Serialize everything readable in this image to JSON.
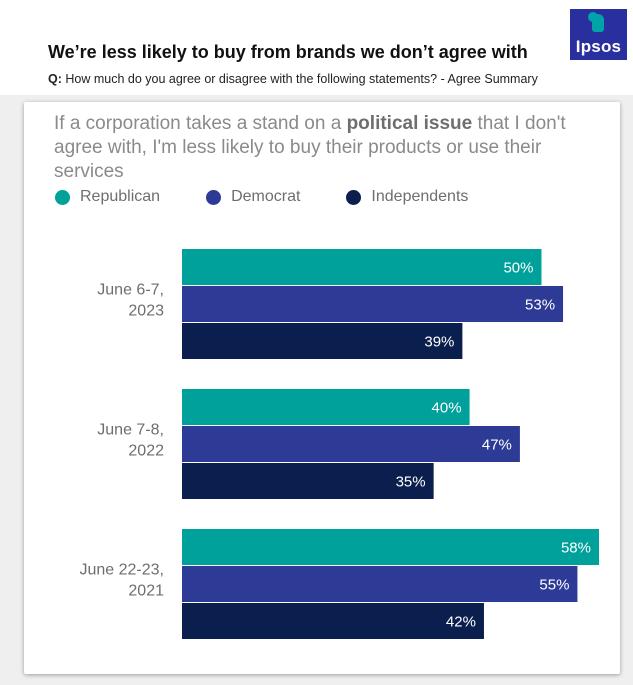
{
  "header": {
    "title": "We’re less likely to buy from brands we don’t agree with",
    "question_label": "Q:",
    "question_text": "How much do you agree or disagree with the following statements? - Agree Summary",
    "logo_text": "Ipsos"
  },
  "card": {
    "statement_before": "If a corporation takes a stand on a ",
    "statement_bold": "political issue",
    "statement_after": " that I don't agree with, I'm less likely to buy their products or use their services"
  },
  "colors": {
    "republican": "#00a09b",
    "democrat": "#2e3b96",
    "independents": "#0b1f4f"
  },
  "chart_data": {
    "type": "bar",
    "orientation": "horizontal",
    "categories": [
      "June 6-7,\n2023",
      "June 7-8,\n2022",
      "June 22-23,\n2021"
    ],
    "series": [
      {
        "name": "Republican",
        "values": [
          50,
          40,
          58
        ],
        "labels": [
          "50%",
          "40%",
          "58%"
        ]
      },
      {
        "name": "Democrat",
        "values": [
          53,
          47,
          55
        ],
        "labels": [
          "53%",
          "47%",
          "55%"
        ]
      },
      {
        "name": "Independents",
        "values": [
          39,
          35,
          42
        ],
        "labels": [
          "39%",
          "35%",
          "42%"
        ]
      }
    ],
    "xlim": [
      0,
      58
    ],
    "legend": "top-left",
    "grid": false
  }
}
